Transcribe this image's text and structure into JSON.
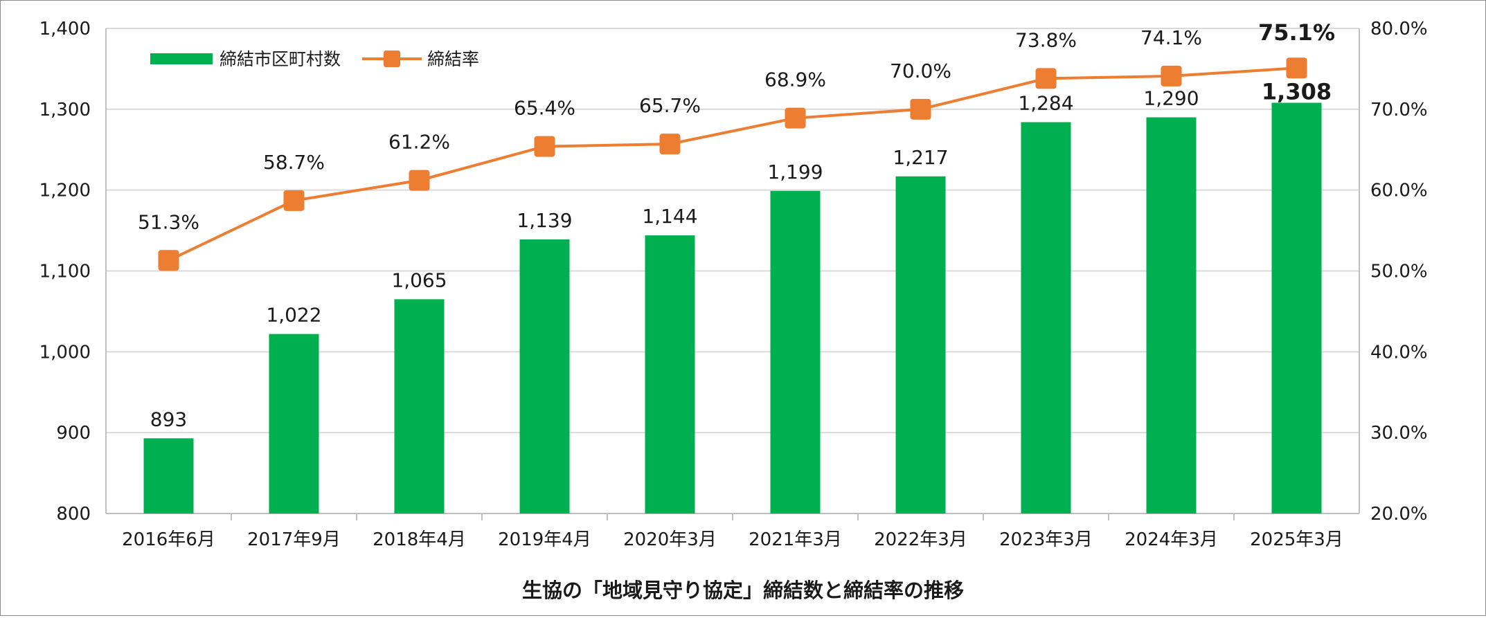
{
  "chart_data": {
    "type": "bar",
    "title": "生協の「地域見守り協定」締結数と締結率の推移",
    "categories": [
      "2016年6月",
      "2017年9月",
      "2018年4月",
      "2019年4月",
      "2020年3月",
      "2021年3月",
      "2022年3月",
      "2023年3月",
      "2024年3月",
      "2025年3月"
    ],
    "series": [
      {
        "name": "締結市区町村数",
        "type": "bar",
        "axis": "left",
        "color": "#00b050",
        "values": [
          893,
          1022,
          1065,
          1139,
          1144,
          1199,
          1217,
          1284,
          1290,
          1308
        ],
        "labels": [
          "893",
          "1,022",
          "1,065",
          "1,139",
          "1,144",
          "1,199",
          "1,217",
          "1,284",
          "1,290",
          "1,308"
        ]
      },
      {
        "name": "締結率",
        "type": "line",
        "axis": "right",
        "color": "#ed7d31",
        "values": [
          51.3,
          58.7,
          61.2,
          65.4,
          65.7,
          68.9,
          70.0,
          73.8,
          74.1,
          75.1
        ],
        "labels": [
          "51.3%",
          "58.7%",
          "61.2%",
          "65.4%",
          "65.7%",
          "68.9%",
          "70.0%",
          "73.8%",
          "74.1%",
          "75.1%"
        ]
      }
    ],
    "y_left": {
      "min": 800,
      "max": 1400,
      "step": 100,
      "tick_labels": [
        "800",
        "900",
        "1,000",
        "1,100",
        "1,200",
        "1,300",
        "1,400"
      ]
    },
    "y_right": {
      "min": 20,
      "max": 80,
      "step": 10,
      "tick_labels": [
        "20.0%",
        "30.0%",
        "40.0%",
        "50.0%",
        "60.0%",
        "70.0%",
        "80.0%"
      ]
    },
    "grid": true,
    "legend_position": "top-left",
    "highlight_last": true
  }
}
